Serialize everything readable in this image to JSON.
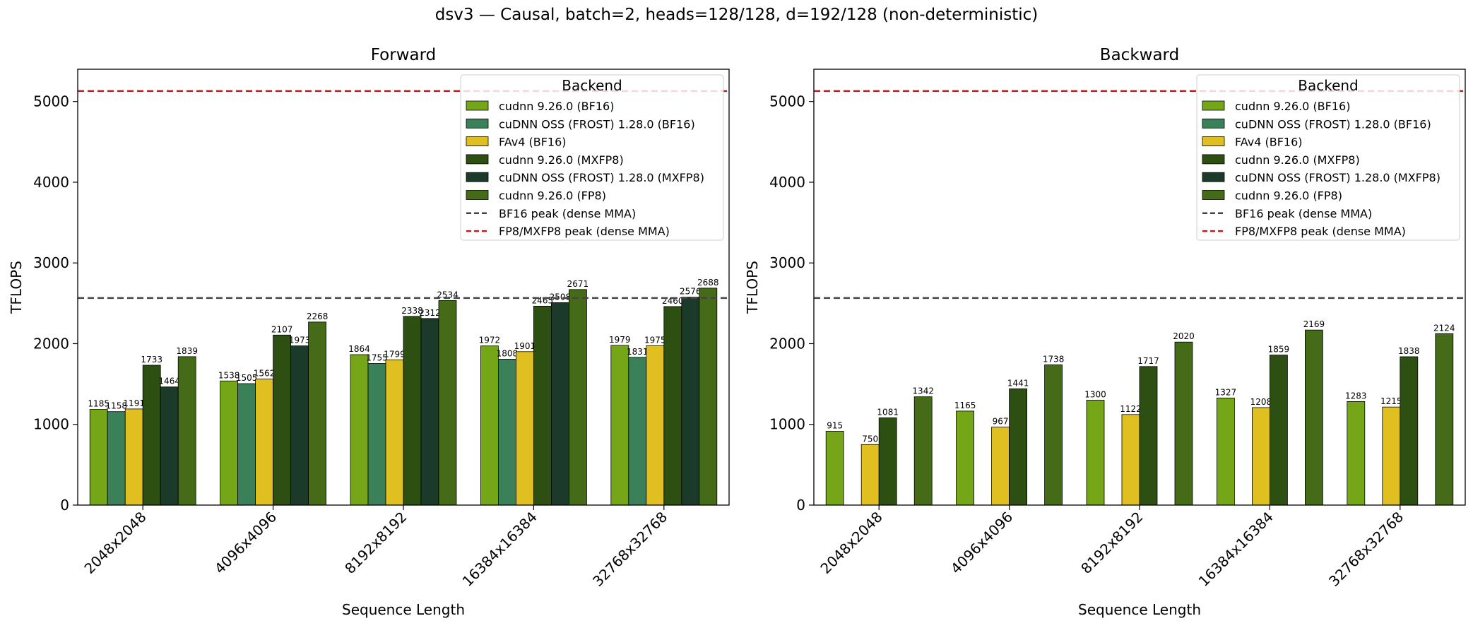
{
  "figure": {
    "title": "dsv3 — Causal, batch=2, heads=128/128, d=192/128 (non-deterministic)"
  },
  "colors": {
    "cudnn 9.26.0 (BF16)": "#74a618",
    "cuDNN OSS (FROST) 1.28.0 (BF16)": "#3a8159",
    "FAv4 (BF16)": "#e0c020",
    "cudnn 9.26.0 (MXFP8)": "#2d5012",
    "cuDNN OSS (FROST) 1.28.0 (MXFP8)": "#1b3a2a",
    "cudnn 9.26.0 (FP8)": "#466b18",
    "bf16_peak_line": "#444444",
    "fp8_peak_line": "#b22222"
  },
  "chart_data": [
    {
      "type": "bar",
      "title": "Forward",
      "xlabel": "Sequence Length",
      "ylabel": "TFLOPS",
      "ylim": [
        0,
        5400
      ],
      "yticks": [
        0,
        1000,
        2000,
        3000,
        4000,
        5000
      ],
      "categories": [
        "2048x2048",
        "4096x4096",
        "8192x8192",
        "16384x16384",
        "32768x32768"
      ],
      "series": [
        {
          "name": "cudnn 9.26.0 (BF16)",
          "values": [
            1185,
            1538,
            1864,
            1972,
            1979
          ]
        },
        {
          "name": "cuDNN OSS (FROST) 1.28.0 (BF16)",
          "values": [
            1158,
            1505,
            1755,
            1808,
            1831
          ]
        },
        {
          "name": "FAv4 (BF16)",
          "values": [
            1191,
            1562,
            1799,
            1901,
            1975
          ]
        },
        {
          "name": "cudnn 9.26.0 (MXFP8)",
          "values": [
            1733,
            2107,
            2338,
            2465,
            2460
          ]
        },
        {
          "name": "cuDNN OSS (FROST) 1.28.0 (MXFP8)",
          "values": [
            1464,
            1973,
            2312,
            2508,
            2576
          ]
        },
        {
          "name": "cudnn 9.26.0 (FP8)",
          "values": [
            1839,
            2268,
            2534,
            2671,
            2688
          ]
        }
      ],
      "reference_lines": [
        {
          "name": "BF16 peak (dense MMA)",
          "value": 2565,
          "style": "dashed"
        },
        {
          "name": "FP8/MXFP8 peak (dense MMA)",
          "value": 5130,
          "style": "dashed"
        }
      ],
      "legend": {
        "title": "Backend",
        "placement": "top-right"
      },
      "grid": false
    },
    {
      "type": "bar",
      "title": "Backward",
      "xlabel": "Sequence Length",
      "ylabel": "TFLOPS",
      "ylim": [
        0,
        5400
      ],
      "yticks": [
        0,
        1000,
        2000,
        3000,
        4000,
        5000
      ],
      "categories": [
        "2048x2048",
        "4096x4096",
        "8192x8192",
        "16384x16384",
        "32768x32768"
      ],
      "series": [
        {
          "name": "cudnn 9.26.0 (BF16)",
          "values": [
            915,
            1165,
            1300,
            1327,
            1283
          ]
        },
        {
          "name": "cuDNN OSS (FROST) 1.28.0 (BF16)",
          "values": [
            null,
            null,
            null,
            null,
            null
          ]
        },
        {
          "name": "FAv4 (BF16)",
          "values": [
            750,
            967,
            1122,
            1208,
            1215
          ]
        },
        {
          "name": "cudnn 9.26.0 (MXFP8)",
          "values": [
            1081,
            1441,
            1717,
            1859,
            1838
          ]
        },
        {
          "name": "cuDNN OSS (FROST) 1.28.0 (MXFP8)",
          "values": [
            null,
            null,
            null,
            null,
            null
          ]
        },
        {
          "name": "cudnn 9.26.0 (FP8)",
          "values": [
            1342,
            1738,
            2020,
            2169,
            2124
          ]
        }
      ],
      "reference_lines": [
        {
          "name": "BF16 peak (dense MMA)",
          "value": 2565,
          "style": "dashed"
        },
        {
          "name": "FP8/MXFP8 peak (dense MMA)",
          "value": 5130,
          "style": "dashed"
        }
      ],
      "legend": {
        "title": "Backend",
        "placement": "top-right"
      },
      "grid": false
    }
  ]
}
